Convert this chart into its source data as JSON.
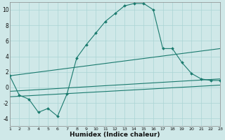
{
  "bg_color": "#cfe8e8",
  "line_color": "#1a7a6e",
  "xlabel": "Humidex (Indice chaleur)",
  "xlim": [
    1,
    23
  ],
  "ylim": [
    -5,
    11
  ],
  "yticks": [
    -4,
    -2,
    0,
    2,
    4,
    6,
    8,
    10
  ],
  "xticks": [
    1,
    2,
    3,
    4,
    5,
    6,
    7,
    8,
    9,
    10,
    11,
    12,
    13,
    14,
    15,
    16,
    17,
    18,
    19,
    20,
    21,
    22,
    23
  ],
  "grid_color": "#aad4d4",
  "line1_x": [
    1,
    2,
    3,
    4,
    5,
    6,
    7,
    8,
    9,
    10,
    11,
    12,
    13,
    14,
    15,
    16,
    17,
    18,
    19,
    20,
    21,
    22,
    23
  ],
  "line1_y": [
    1.5,
    -1.0,
    -1.5,
    -3.2,
    -2.7,
    -3.7,
    -0.8,
    3.8,
    5.5,
    7.0,
    8.5,
    9.5,
    10.5,
    10.8,
    10.8,
    10.0,
    5.0,
    5.0,
    3.2,
    1.8,
    1.1,
    0.9,
    0.9
  ],
  "line2_x": [
    1,
    23
  ],
  "line2_y": [
    1.5,
    5.0
  ],
  "line3_x": [
    1,
    23
  ],
  "line3_y": [
    -0.5,
    1.1
  ],
  "line4_x": [
    1,
    23
  ],
  "line4_y": [
    -1.2,
    0.3
  ]
}
